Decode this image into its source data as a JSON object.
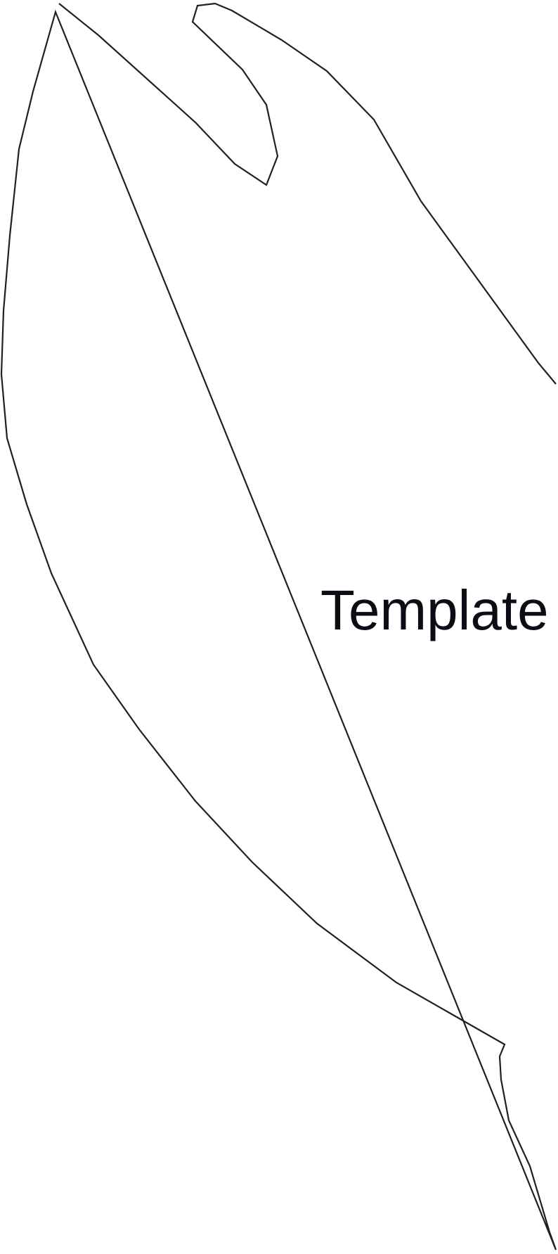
{
  "label": "Template",
  "colors": {
    "outline": "#231f20",
    "text": "#0f0a14",
    "background": "#ffffff"
  }
}
